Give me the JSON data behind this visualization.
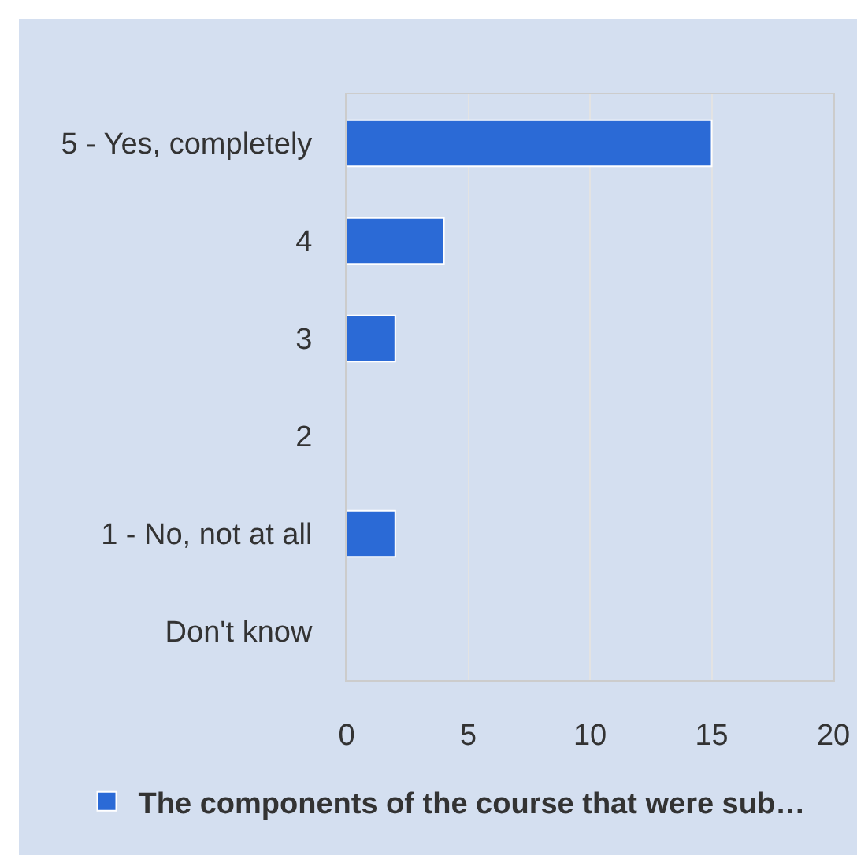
{
  "chart_data": {
    "type": "bar",
    "orientation": "horizontal",
    "categories": [
      "5 - Yes, completely",
      "4",
      "3",
      "2",
      "1 - No, not at all",
      "Don't know"
    ],
    "series": [
      {
        "name": "The components of the course that were sub…",
        "color": "#2b6ad6",
        "values": [
          15,
          4,
          2,
          0,
          2,
          0
        ]
      }
    ],
    "xlim": [
      0,
      20
    ],
    "xticks": [
      0,
      5,
      10,
      15,
      20
    ],
    "grid": "x",
    "legend": "bottom"
  }
}
